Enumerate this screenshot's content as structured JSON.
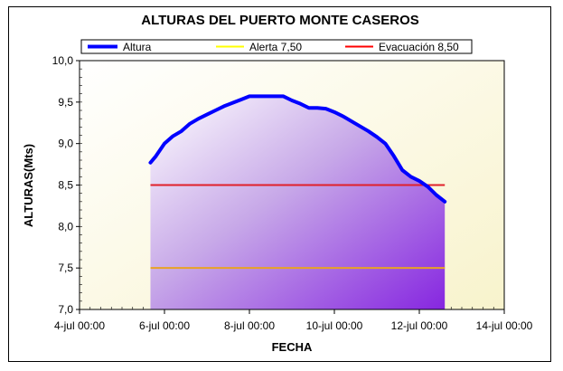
{
  "chart_data": {
    "type": "area",
    "title": "ALTURAS DEL PUERTO MONTE CASEROS",
    "xlabel": "FECHA",
    "ylabel": "ALTURAS(Mts)",
    "x_ticks": [
      "4-jul 00:00",
      "6-jul 00:00",
      "8-jul 00:00",
      "10-jul 00:00",
      "12-jul 00:00",
      "14-jul 00:00"
    ],
    "y_ticks": [
      "7,0",
      "7,5",
      "8,0",
      "8,5",
      "9,0",
      "9,5",
      "10,0"
    ],
    "xlim": [
      0,
      10
    ],
    "ylim": [
      7.0,
      10.0
    ],
    "legend_position": "top",
    "series": [
      {
        "name": "Altura",
        "color": "#0000ff",
        "x": [
          1.67,
          1.8,
          2.0,
          2.2,
          2.4,
          2.6,
          2.8,
          3.0,
          3.2,
          3.4,
          3.6,
          3.8,
          4.0,
          4.2,
          4.5,
          4.8,
          5.0,
          5.2,
          5.4,
          5.6,
          5.8,
          6.0,
          6.2,
          6.4,
          6.6,
          6.8,
          7.0,
          7.2,
          7.4,
          7.6,
          7.8,
          8.0,
          8.2,
          8.4,
          8.6
        ],
        "y": [
          8.77,
          8.85,
          9.0,
          9.09,
          9.15,
          9.24,
          9.3,
          9.35,
          9.4,
          9.45,
          9.49,
          9.53,
          9.57,
          9.57,
          9.57,
          9.57,
          9.52,
          9.48,
          9.43,
          9.43,
          9.42,
          9.38,
          9.33,
          9.27,
          9.21,
          9.15,
          9.08,
          9.0,
          8.85,
          8.68,
          8.6,
          8.55,
          8.48,
          8.38,
          8.3
        ]
      },
      {
        "name": "Alerta 7,50",
        "color": "#ffff00",
        "x": [
          1.67,
          8.6
        ],
        "y": [
          7.5,
          7.5
        ]
      },
      {
        "name": "Evacuación 8,50",
        "color": "#ff0000",
        "x": [
          1.67,
          8.6
        ],
        "y": [
          8.5,
          8.5
        ]
      }
    ]
  }
}
